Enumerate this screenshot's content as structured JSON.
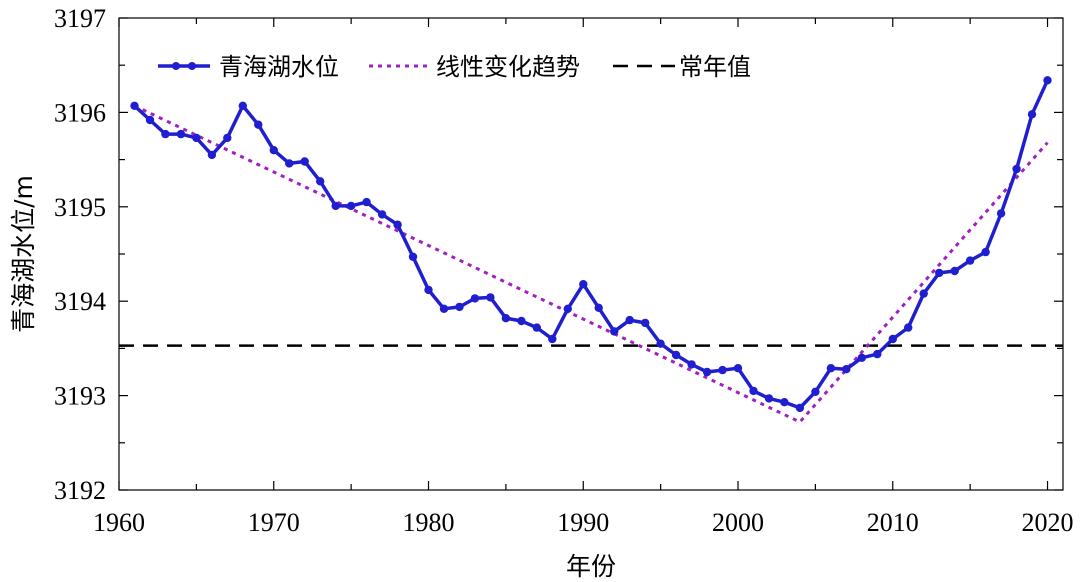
{
  "chart_data": {
    "type": "line",
    "title": "",
    "xlabel": "年份",
    "ylabel": "青海湖水位/m",
    "xlim": [
      1960,
      2021
    ],
    "ylim": [
      3192,
      3197
    ],
    "x_ticks": [
      1960,
      1970,
      1980,
      1990,
      2000,
      2010,
      2020
    ],
    "y_ticks": [
      3192,
      3193,
      3194,
      3195,
      3196,
      3197
    ],
    "grid": false,
    "legend_position": "top",
    "colors": {
      "water_level": "#1f1fcf",
      "trend": "#a020c0",
      "normal": "#000000"
    },
    "series": [
      {
        "name": "青海湖水位",
        "style": "solid-markers",
        "x": [
          1961,
          1962,
          1963,
          1964,
          1965,
          1966,
          1967,
          1968,
          1969,
          1970,
          1971,
          1972,
          1973,
          1974,
          1975,
          1976,
          1977,
          1978,
          1979,
          1980,
          1981,
          1982,
          1983,
          1984,
          1985,
          1986,
          1987,
          1988,
          1989,
          1990,
          1991,
          1992,
          1993,
          1994,
          1995,
          1996,
          1997,
          1998,
          1999,
          2000,
          2001,
          2002,
          2003,
          2004,
          2005,
          2006,
          2007,
          2008,
          2009,
          2010,
          2011,
          2012,
          2013,
          2014,
          2015,
          2016,
          2017,
          2018,
          2019,
          2020
        ],
        "values": [
          3196.07,
          3195.92,
          3195.77,
          3195.77,
          3195.73,
          3195.55,
          3195.73,
          3196.07,
          3195.87,
          3195.6,
          3195.46,
          3195.48,
          3195.27,
          3195.01,
          3195.01,
          3195.05,
          3194.92,
          3194.81,
          3194.47,
          3194.12,
          3193.92,
          3193.94,
          3194.03,
          3194.04,
          3193.82,
          3193.79,
          3193.72,
          3193.6,
          3193.92,
          3194.18,
          3193.93,
          3193.68,
          3193.8,
          3193.77,
          3193.55,
          3193.43,
          3193.33,
          3193.25,
          3193.27,
          3193.29,
          3193.05,
          3192.97,
          3192.93,
          3192.87,
          3193.04,
          3193.29,
          3193.28,
          3193.4,
          3193.44,
          3193.6,
          3193.72,
          3194.08,
          3194.3,
          3194.32,
          3194.43,
          3194.52,
          3194.93,
          3195.4,
          3195.98,
          3196.34
        ]
      },
      {
        "name": "线性变化趋势",
        "style": "dotted",
        "x": [
          1961,
          2004,
          2020
        ],
        "values": [
          3196.07,
          3192.72,
          3195.68
        ]
      },
      {
        "name": "常年值",
        "style": "dashed",
        "x": [
          1960,
          2021
        ],
        "values": [
          3193.53,
          3193.53
        ]
      }
    ]
  }
}
